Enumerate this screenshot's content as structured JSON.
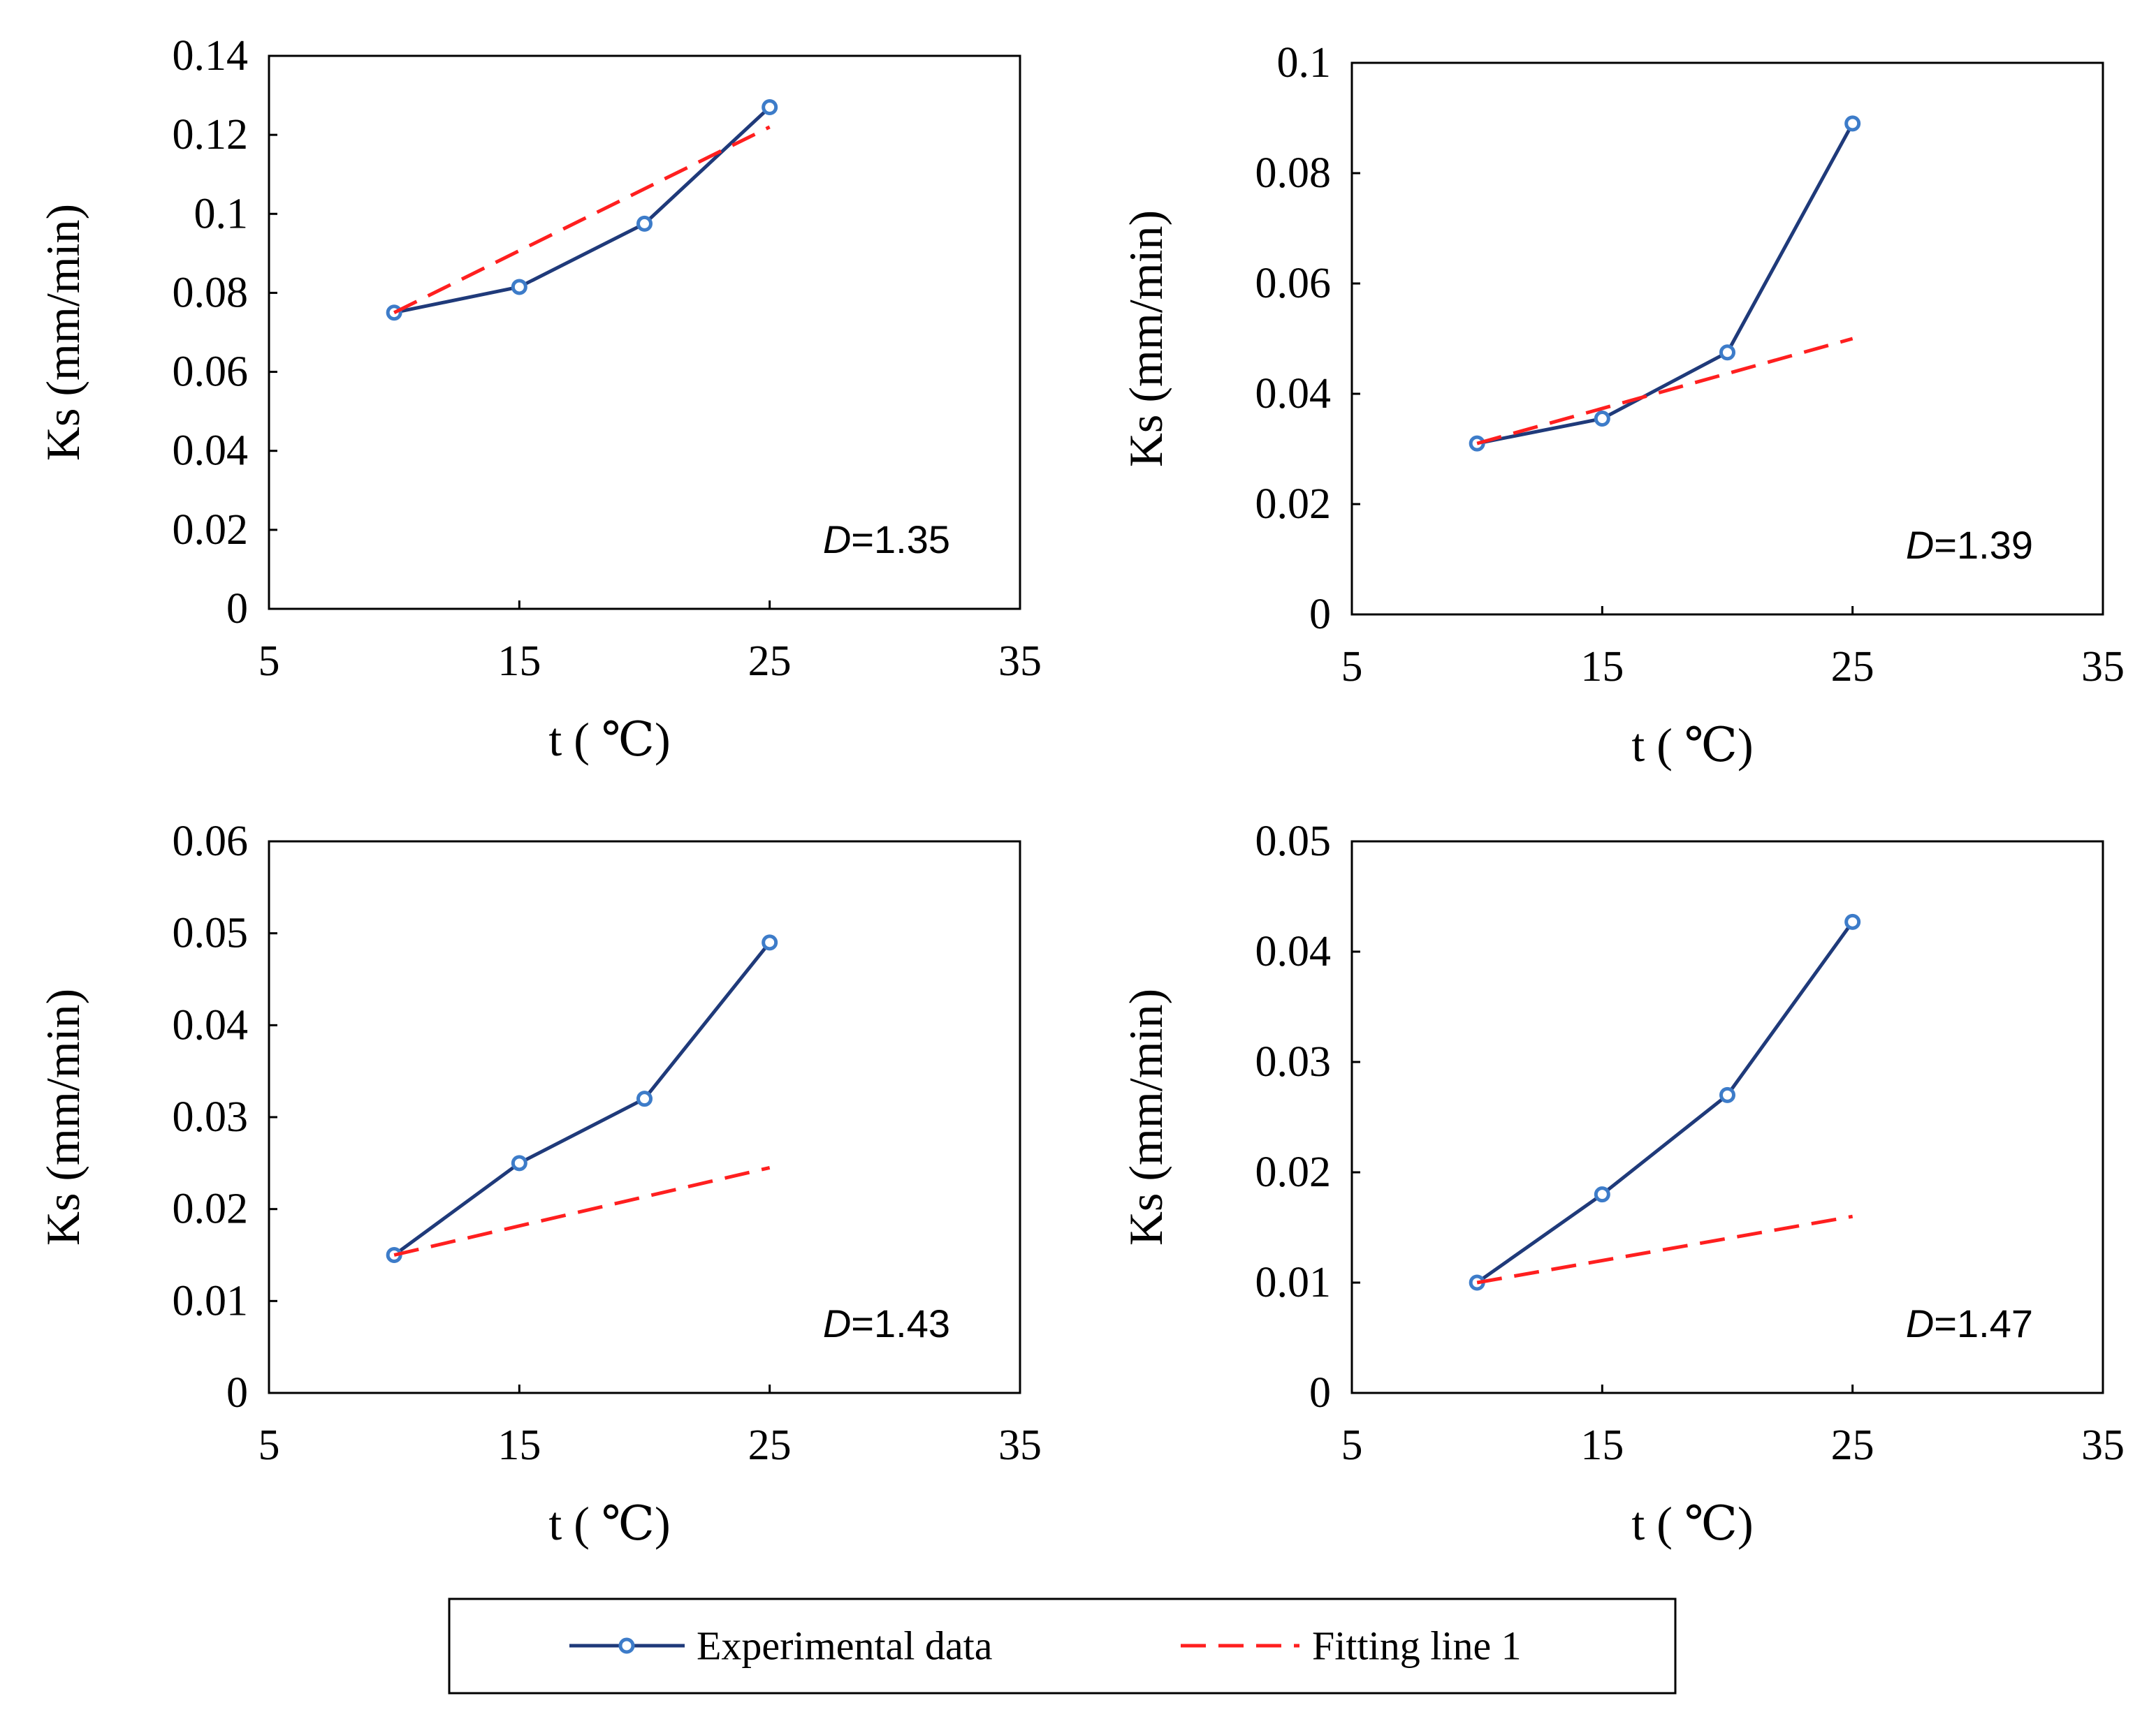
{
  "colors": {
    "experimental": "#1F3A7A",
    "marker": "#3D7CC9",
    "fit": "#FF1F1F",
    "frame": "#000000"
  },
  "legend": {
    "experimental_label": "Experimental data",
    "fit_label": "Fitting line 1"
  },
  "chart_data": [
    {
      "type": "line",
      "title": "",
      "xlabel": "t ( ℃)",
      "ylabel": "Ks (mm/min)",
      "xlim": [
        5,
        35
      ],
      "ylim": [
        0,
        0.14
      ],
      "xticks": [
        5,
        15,
        25,
        35
      ],
      "xtick_labels": [
        "5",
        "15",
        "25",
        "35"
      ],
      "yticks": [
        0,
        0.02,
        0.04,
        0.06,
        0.08,
        0.1,
        0.12,
        0.14
      ],
      "ytick_labels": [
        "0",
        "0.02",
        "0.04",
        "0.06",
        "0.08",
        "0.1",
        "0.12",
        "0.14"
      ],
      "annotation": {
        "var": "D",
        "text": "=1.35"
      },
      "series": [
        {
          "name": "Experimental data",
          "style": "solid-marker",
          "x": [
            10,
            15,
            20,
            25
          ],
          "y": [
            0.075,
            0.0815,
            0.0975,
            0.127
          ]
        },
        {
          "name": "Fitting line 1",
          "style": "dashed",
          "x": [
            10,
            25
          ],
          "y": [
            0.075,
            0.122
          ]
        }
      ]
    },
    {
      "type": "line",
      "title": "",
      "xlabel": "t ( ℃)",
      "ylabel": "Ks (mm/min)",
      "xlim": [
        5,
        35
      ],
      "ylim": [
        0,
        0.1
      ],
      "xticks": [
        5,
        15,
        25,
        35
      ],
      "xtick_labels": [
        "5",
        "15",
        "25",
        "35"
      ],
      "yticks": [
        0,
        0.02,
        0.04,
        0.06,
        0.08,
        0.1
      ],
      "ytick_labels": [
        "0",
        "0.02",
        "0.04",
        "0.06",
        "0.08",
        "0.1"
      ],
      "annotation": {
        "var": "D",
        "text": "=1.39"
      },
      "series": [
        {
          "name": "Experimental data",
          "style": "solid-marker",
          "x": [
            10,
            15,
            20,
            25
          ],
          "y": [
            0.031,
            0.0355,
            0.0475,
            0.089
          ]
        },
        {
          "name": "Fitting line 1",
          "style": "dashed",
          "x": [
            10,
            25
          ],
          "y": [
            0.031,
            0.05
          ]
        }
      ]
    },
    {
      "type": "line",
      "title": "",
      "xlabel": "t ( ℃)",
      "ylabel": "Ks (mm/min)",
      "xlim": [
        5,
        35
      ],
      "ylim": [
        0,
        0.06
      ],
      "xticks": [
        5,
        15,
        25,
        35
      ],
      "xtick_labels": [
        "5",
        "15",
        "25",
        "35"
      ],
      "yticks": [
        0,
        0.01,
        0.02,
        0.03,
        0.04,
        0.05,
        0.06
      ],
      "ytick_labels": [
        "0",
        "0.01",
        "0.02",
        "0.03",
        "0.04",
        "0.05",
        "0.06"
      ],
      "annotation": {
        "var": "D",
        "text": "=1.43"
      },
      "series": [
        {
          "name": "Experimental data",
          "style": "solid-marker",
          "x": [
            10,
            15,
            20,
            25
          ],
          "y": [
            0.015,
            0.025,
            0.032,
            0.049
          ]
        },
        {
          "name": "Fitting line 1",
          "style": "dashed",
          "x": [
            10,
            25
          ],
          "y": [
            0.015,
            0.0245
          ]
        }
      ]
    },
    {
      "type": "line",
      "title": "",
      "xlabel": "t ( ℃)",
      "ylabel": "Ks (mm/min)",
      "xlim": [
        5,
        35
      ],
      "ylim": [
        0,
        0.05
      ],
      "xticks": [
        5,
        15,
        25,
        35
      ],
      "xtick_labels": [
        "5",
        "15",
        "25",
        "35"
      ],
      "yticks": [
        0,
        0.01,
        0.02,
        0.03,
        0.04,
        0.05
      ],
      "ytick_labels": [
        "0",
        "0.01",
        "0.02",
        "0.03",
        "0.04",
        "0.05"
      ],
      "annotation": {
        "var": "D",
        "text": "=1.47"
      },
      "series": [
        {
          "name": "Experimental data",
          "style": "solid-marker",
          "x": [
            10,
            15,
            20,
            25
          ],
          "y": [
            0.01,
            0.018,
            0.027,
            0.0427
          ]
        },
        {
          "name": "Fitting line 1",
          "style": "dashed",
          "x": [
            10,
            25
          ],
          "y": [
            0.01,
            0.016
          ]
        }
      ]
    }
  ]
}
